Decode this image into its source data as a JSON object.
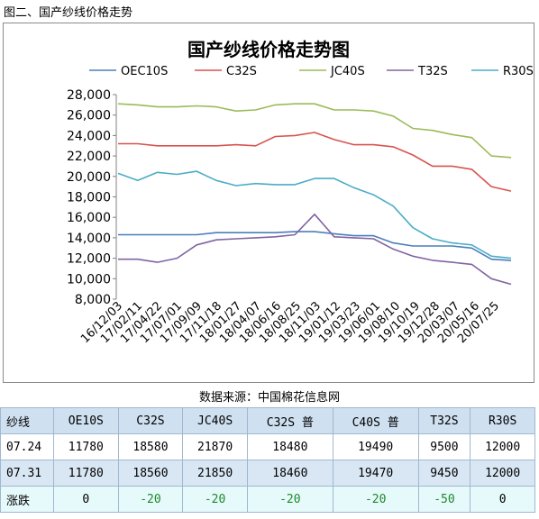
{
  "page_title": "图二、国产纱线价格走势",
  "source": "数据来源：中国棉花信息网",
  "chart_data": {
    "type": "line",
    "title": "国产纱线价格走势图",
    "ylim": [
      8000,
      28000
    ],
    "yticks": [
      "8,000",
      "10,000",
      "12,000",
      "14,000",
      "16,000",
      "18,000",
      "20,000",
      "22,000",
      "24,000",
      "26,000",
      "28,000"
    ],
    "xticks": [
      "16/12/03",
      "17/02/11",
      "17/04/22",
      "17/07/01",
      "17/09/09",
      "17/11/18",
      "18/01/27",
      "18/04/07",
      "18/06/16",
      "18/08/25",
      "18/11/03",
      "19/01/12",
      "19/03/23",
      "19/06/01",
      "19/08/10",
      "19/10/19",
      "19/12/28",
      "20/03/07",
      "20/05/16",
      "20/07/25"
    ],
    "legend_position": "top",
    "series": [
      {
        "name": "OEC10S",
        "color": "#4a7ebb",
        "values": [
          14300,
          14300,
          14300,
          14300,
          14300,
          14500,
          14500,
          14500,
          14500,
          14600,
          14600,
          14400,
          14200,
          14200,
          13500,
          13200,
          13200,
          13200,
          13000,
          11900,
          11780
        ]
      },
      {
        "name": "C32S",
        "color": "#d9534f",
        "values": [
          23200,
          23200,
          23000,
          23000,
          23000,
          23000,
          23100,
          23000,
          23900,
          24000,
          24300,
          23600,
          23100,
          23100,
          22900,
          22100,
          21000,
          21000,
          20700,
          19000,
          18560
        ]
      },
      {
        "name": "JC40S",
        "color": "#9bbb59",
        "values": [
          27100,
          27000,
          26800,
          26800,
          26900,
          26800,
          26400,
          26500,
          27000,
          27100,
          27100,
          26500,
          26500,
          26400,
          25900,
          24700,
          24500,
          24100,
          23800,
          22000,
          21850
        ]
      },
      {
        "name": "T32S",
        "color": "#8064a2",
        "values": [
          11900,
          11900,
          11600,
          12000,
          13300,
          13800,
          13900,
          14000,
          14100,
          14300,
          16300,
          14100,
          14000,
          13900,
          12900,
          12200,
          11800,
          11600,
          11400,
          10000,
          9450
        ]
      },
      {
        "name": "R30S",
        "color": "#4bacc6",
        "values": [
          20300,
          19600,
          20400,
          20200,
          20500,
          19600,
          19100,
          19300,
          19200,
          19200,
          19800,
          19800,
          18900,
          18200,
          17100,
          15000,
          13900,
          13500,
          13300,
          12200,
          12000
        ]
      }
    ]
  },
  "table": {
    "headers": [
      "纱线",
      "OE10S",
      "C32S",
      "JC40S",
      "C32S 普",
      "C40S 普",
      "T32S",
      "R30S"
    ],
    "rows": [
      [
        "07.24",
        "11780",
        "18580",
        "21870",
        "18480",
        "19490",
        "9500",
        "12000"
      ],
      [
        "07.31",
        "11780",
        "18560",
        "21850",
        "18460",
        "19470",
        "9450",
        "12000"
      ],
      [
        "涨跌",
        "0",
        "-20",
        "-20",
        "-20",
        "-20",
        "-50",
        "0"
      ]
    ]
  }
}
